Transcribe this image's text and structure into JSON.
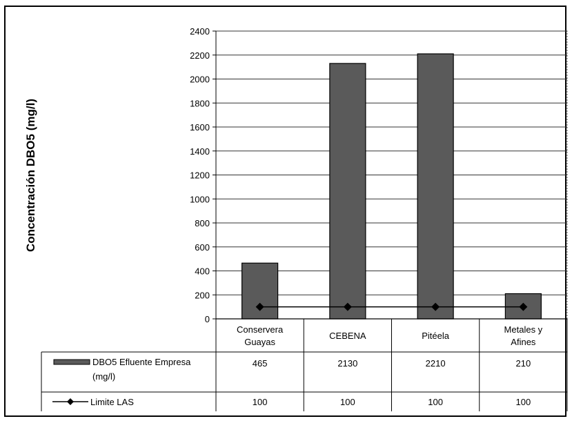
{
  "chart_data": {
    "type": "bar",
    "title": "",
    "xlabel": "",
    "ylabel": "Concentración DBO5 (mg/l)",
    "ylim": [
      0,
      2400
    ],
    "yticks": [
      0,
      200,
      400,
      600,
      800,
      1000,
      1200,
      1400,
      1600,
      1800,
      2000,
      2200,
      2400
    ],
    "grid": true,
    "legend_placement": "data table",
    "categories": [
      [
        "Conservera",
        "Guayas"
      ],
      [
        "CEBENA"
      ],
      [
        "Pitéela"
      ],
      [
        "Metales y",
        "Afines"
      ]
    ],
    "series": [
      {
        "name_lines": [
          "DBO5 Efluente Empresa",
          "(mg/l)"
        ],
        "type": "bar",
        "values": [
          465,
          2130,
          2210,
          210
        ],
        "color": "#5a5a5a"
      },
      {
        "name_lines": [
          "Limite LAS"
        ],
        "type": "line",
        "marker": "diamond",
        "values": [
          100,
          100,
          100,
          100
        ],
        "color": "#000000"
      }
    ]
  }
}
